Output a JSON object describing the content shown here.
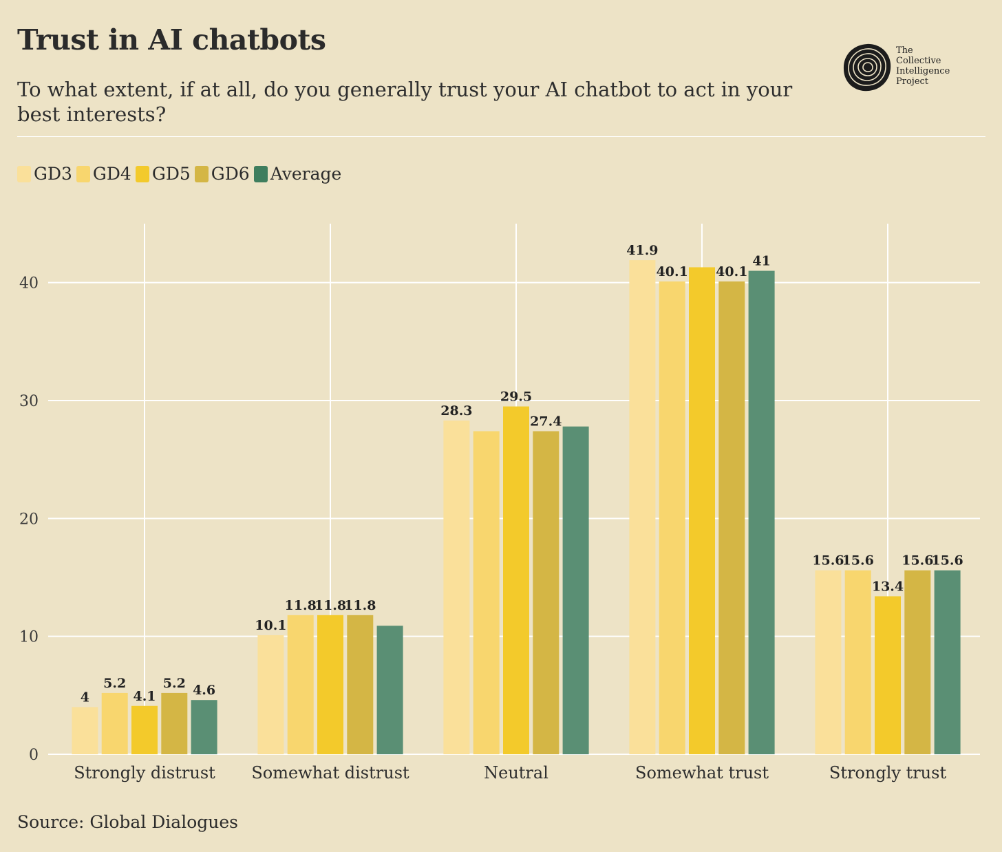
{
  "header": {
    "title": "Trust in AI chatbots",
    "subtitle": "To what extent, if at all, do you generally trust your AI chatbot to act in your best interests?"
  },
  "logo": {
    "line1": "The",
    "line2": "Collective",
    "line3": "Intelligence",
    "line4": "Project"
  },
  "footer": {
    "source": "Source: Global Dialogues"
  },
  "colors": {
    "background": "#ede3c6",
    "grid": "#ffffff",
    "text": "#2b2b2b"
  },
  "chart_data": {
    "type": "bar",
    "title": "Trust in AI chatbots",
    "xlabel": "",
    "ylabel": "",
    "ylim": [
      0,
      45
    ],
    "yticks": [
      0,
      10,
      20,
      30,
      40
    ],
    "grid": true,
    "legend_position": "top-left",
    "categories": [
      "Strongly distrust",
      "Somewhat distrust",
      "Neutral",
      "Somewhat trust",
      "Strongly trust"
    ],
    "series": [
      {
        "name": "GD3",
        "color": "#fae09a",
        "values": [
          4,
          10.1,
          28.3,
          41.9,
          15.6
        ],
        "labels": [
          "4",
          "10.1",
          "28.3",
          "41.9",
          "15.6"
        ]
      },
      {
        "name": "GD4",
        "color": "#f8d66e",
        "values": [
          5.2,
          11.8,
          27.4,
          40.1,
          15.6
        ],
        "labels": [
          "5.2",
          "11.8",
          "",
          "40.1",
          "15.6"
        ]
      },
      {
        "name": "GD5",
        "color": "#f3ca2b",
        "values": [
          4.1,
          11.8,
          29.5,
          41.3,
          13.4
        ],
        "labels": [
          "4.1",
          "11.8",
          "29.5",
          "",
          "13.4"
        ]
      },
      {
        "name": "GD6",
        "color": "#d4b645",
        "values": [
          5.2,
          11.8,
          27.4,
          40.1,
          15.6
        ],
        "labels": [
          "5.2",
          "11.8",
          "27.4",
          "40.1",
          "15.6"
        ]
      },
      {
        "name": "Average",
        "color": "#5a8f74",
        "legend_color": "#3f7e5e",
        "values": [
          4.6,
          10.9,
          27.8,
          41,
          15.6
        ],
        "labels": [
          "4.6",
          "",
          "",
          "41",
          "15.6"
        ]
      }
    ]
  }
}
